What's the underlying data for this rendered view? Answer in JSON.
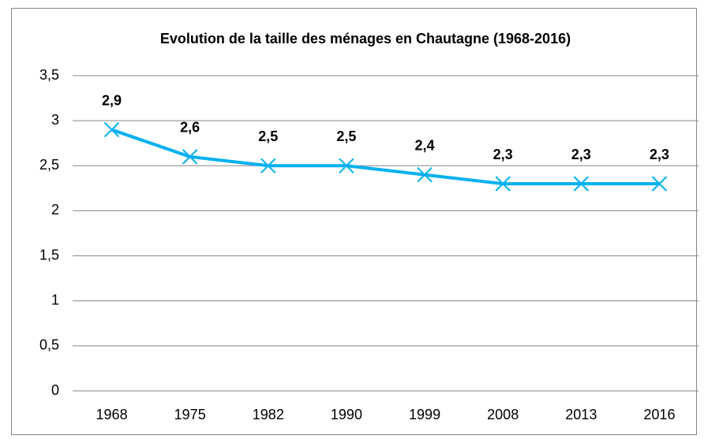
{
  "chart_data": {
    "type": "line",
    "title": "Evolution de la taille des ménages en Chautagne (1968-2016)",
    "categories": [
      "1968",
      "1975",
      "1982",
      "1990",
      "1999",
      "2008",
      "2013",
      "2016"
    ],
    "values": [
      2.9,
      2.6,
      2.5,
      2.5,
      2.4,
      2.3,
      2.3,
      2.3
    ],
    "value_labels": [
      "2,9",
      "2,6",
      "2,5",
      "2,5",
      "2,4",
      "2,3",
      "2,3",
      "2,3"
    ],
    "color": "#00b0f0",
    "ylim": [
      0,
      3.5
    ],
    "yticks": [
      0,
      {
        "value": 0.5,
        "label": "0,5"
      },
      1,
      {
        "value": 1.5,
        "label": "1,5"
      },
      2,
      {
        "value": 2.5,
        "label": "2,5"
      },
      3,
      {
        "value": 3.5,
        "label": "3,5"
      }
    ],
    "grid": true
  }
}
